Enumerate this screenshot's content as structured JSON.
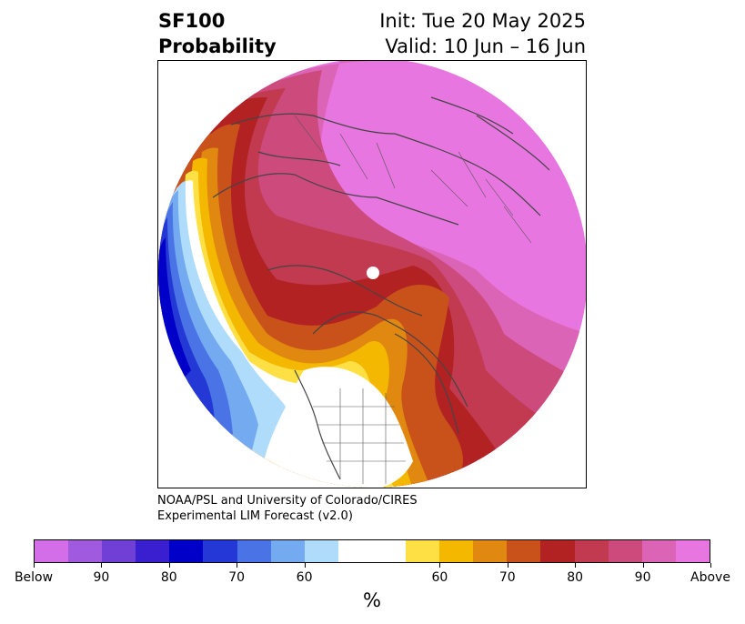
{
  "header": {
    "variable": "SF100",
    "product": "Probability",
    "init": "Init: Tue 20 May 2025",
    "valid": "Valid: 10 Jun – 16 Jun"
  },
  "credit": {
    "line1": "NOAA/PSL and University of Colorado/CIRES",
    "line2": "Experimental LIM Forecast (v2.0)"
  },
  "colorbar": {
    "colors": [
      "#d36ee8",
      "#a05ae0",
      "#7040d6",
      "#3a1fd0",
      "#0000c8",
      "#2438d6",
      "#4a74e6",
      "#74aaf0",
      "#aedcfa",
      "#ffffff",
      "#ffffff",
      "#ffe044",
      "#f4b800",
      "#e08810",
      "#c8521a",
      "#b22222",
      "#c23a50",
      "#cc4a7c",
      "#dc64b6",
      "#e876e0"
    ],
    "labels": [
      "Below",
      "90",
      "80",
      "70",
      "60",
      "60",
      "70",
      "80",
      "90",
      "Above"
    ],
    "unit": "%"
  }
}
